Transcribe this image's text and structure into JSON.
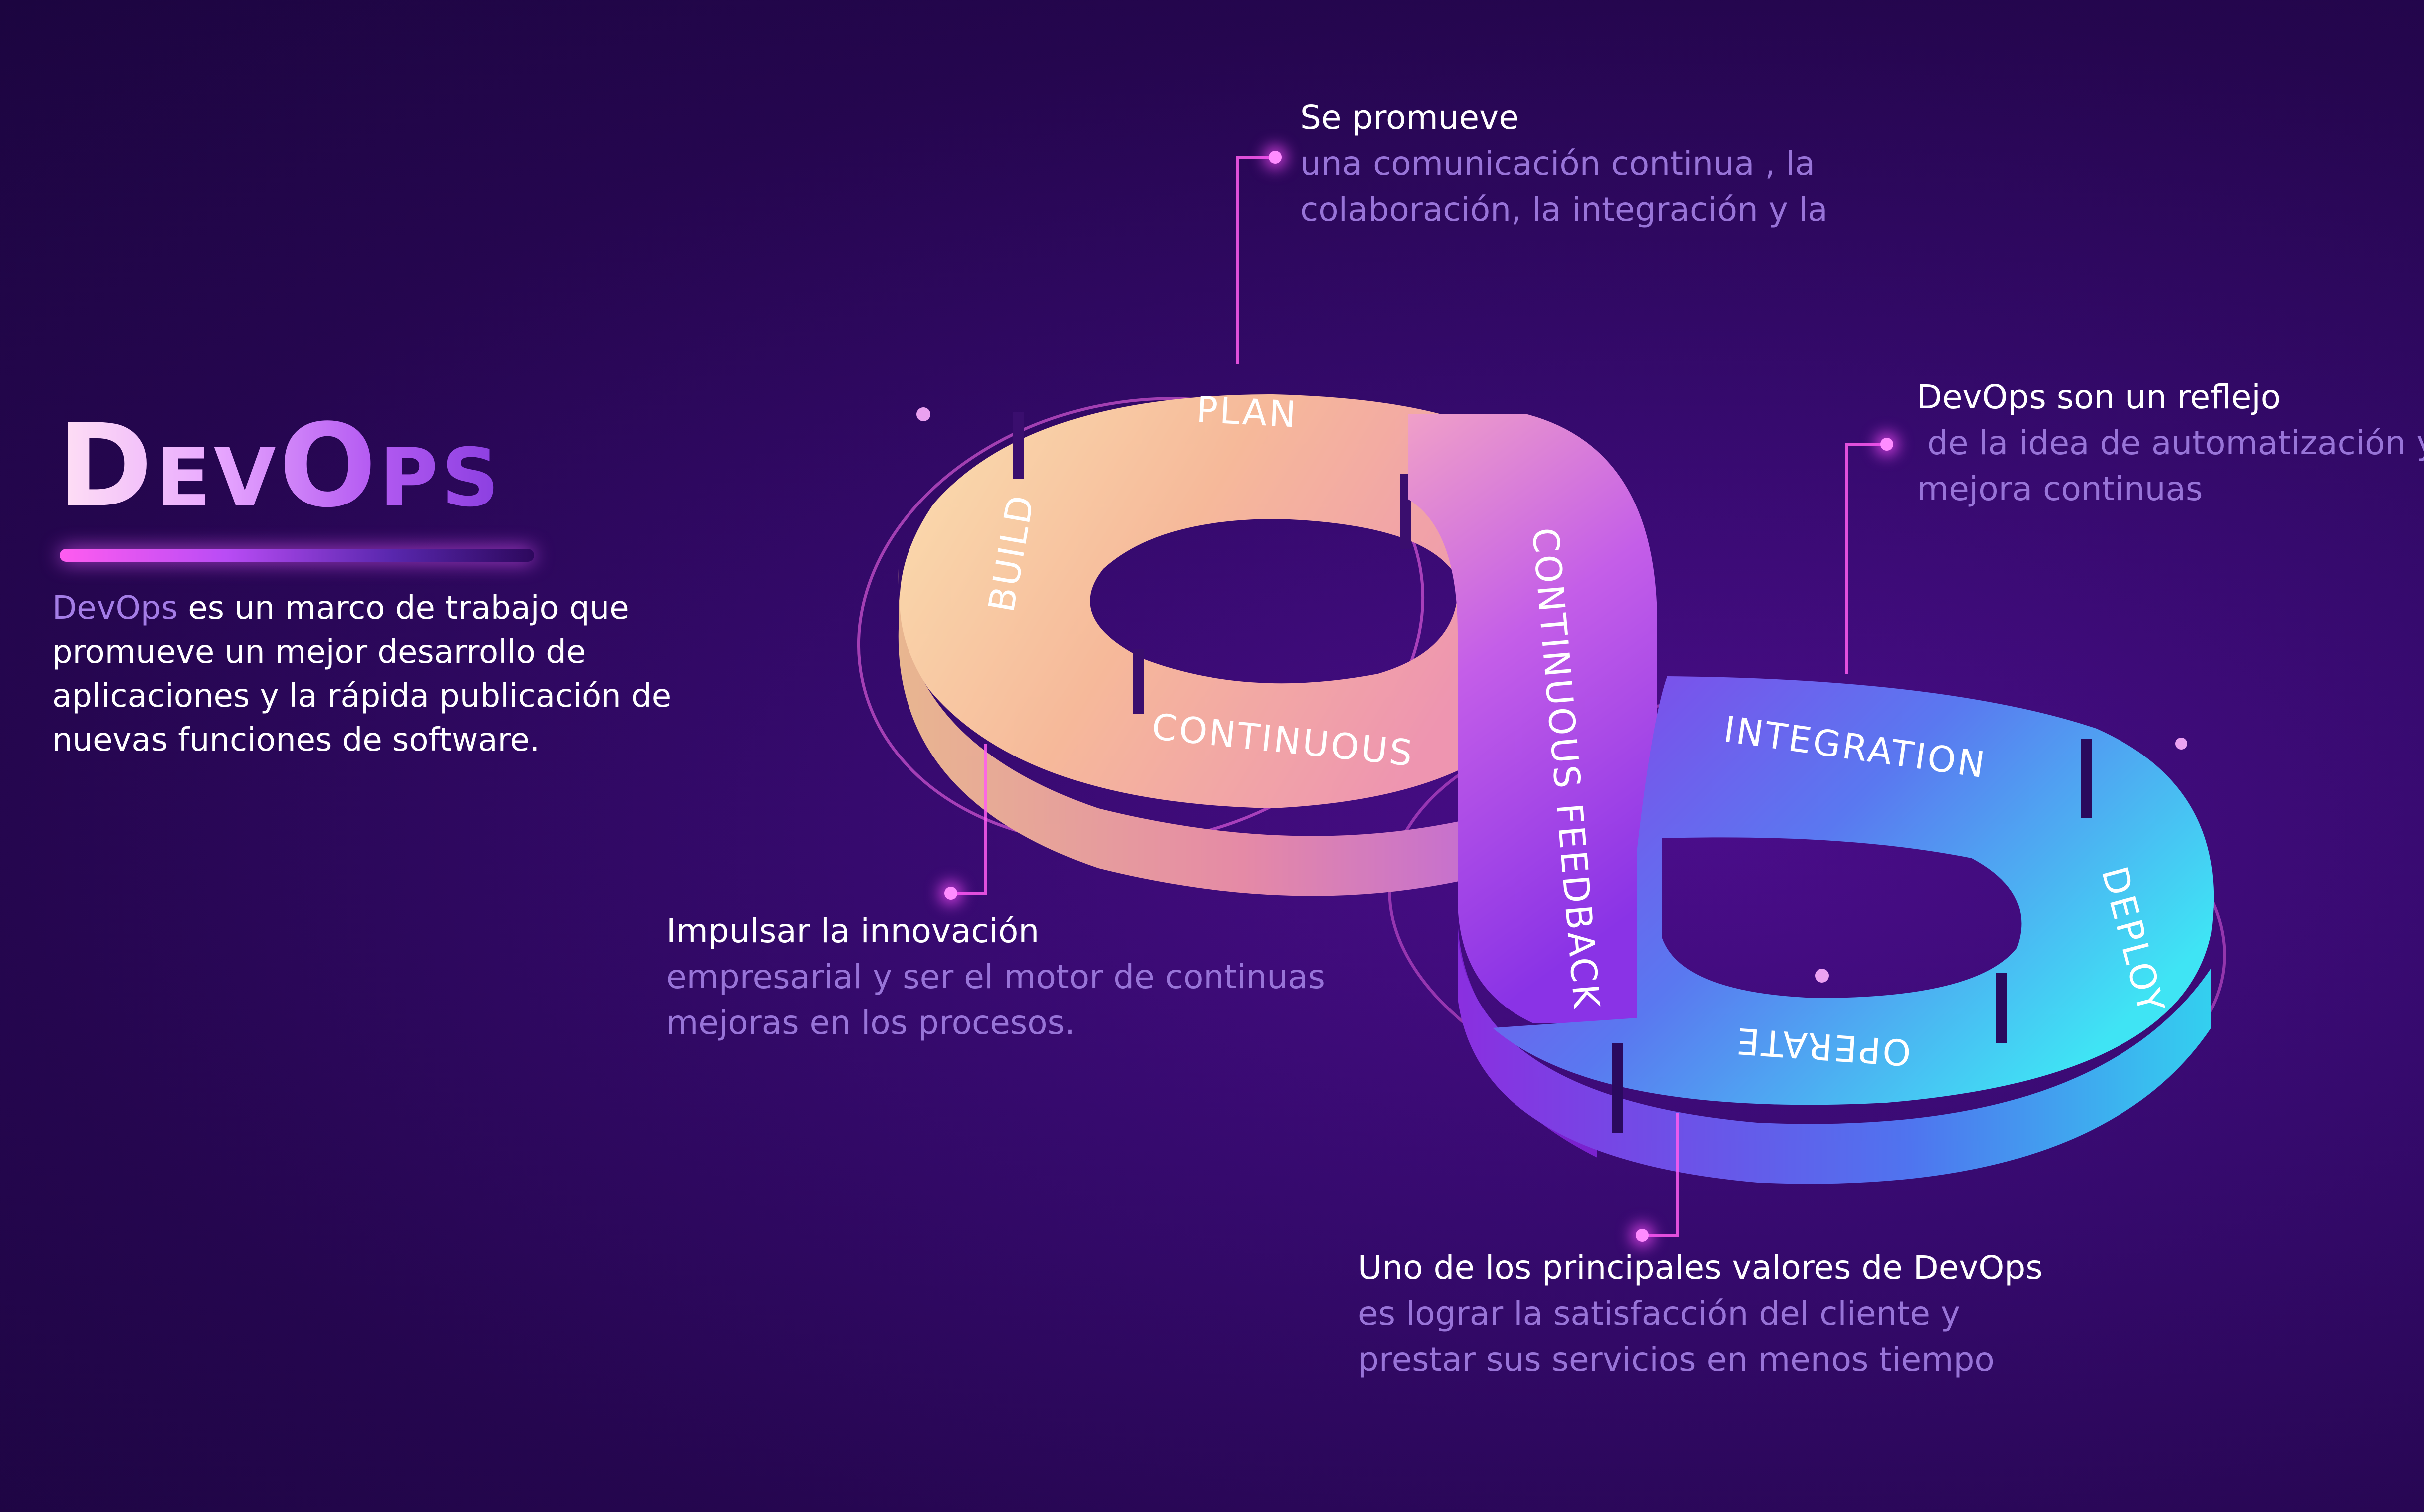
{
  "title": "DevOps",
  "intro": {
    "accent": "DevOps",
    "rest": " es un marco de trabajo  que promueve un mejor desarrollo de aplicaciones y la rápida publicación de nuevas funciones de software."
  },
  "segments": {
    "plan": "PLAN",
    "build": "BUILD",
    "continuous": "CONTINUOUS",
    "feedback": "CONTINUOUS FEEDBACK",
    "integration": "INTEGRATION",
    "deploy": "DEPLOY",
    "operate": "OPERATE"
  },
  "callouts": {
    "top": {
      "head": "Se promueve",
      "line1": "una comunicación continua , la",
      "line2": "colaboración, la integración y la"
    },
    "right": {
      "head": "DevOps son un reflejo",
      "line1": " de la idea de automatización y",
      "line2": "mejora continuas"
    },
    "left": {
      "head": "Impulsar la innovación",
      "line1": "empresarial y ser el motor de continuas",
      "line2": "mejoras en los procesos."
    },
    "bottom": {
      "head": "Uno de los principales valores de DevOps",
      "line1": "es lograr la satisfacción del cliente y",
      "line2": "prestar sus servicios en menos tiempo"
    }
  },
  "colors": {
    "accent_pink": "#ff5cf0",
    "accent_purple": "#a47de6",
    "warm_loop": "#f6c79a",
    "cool_loop": "#3fd6f0"
  }
}
